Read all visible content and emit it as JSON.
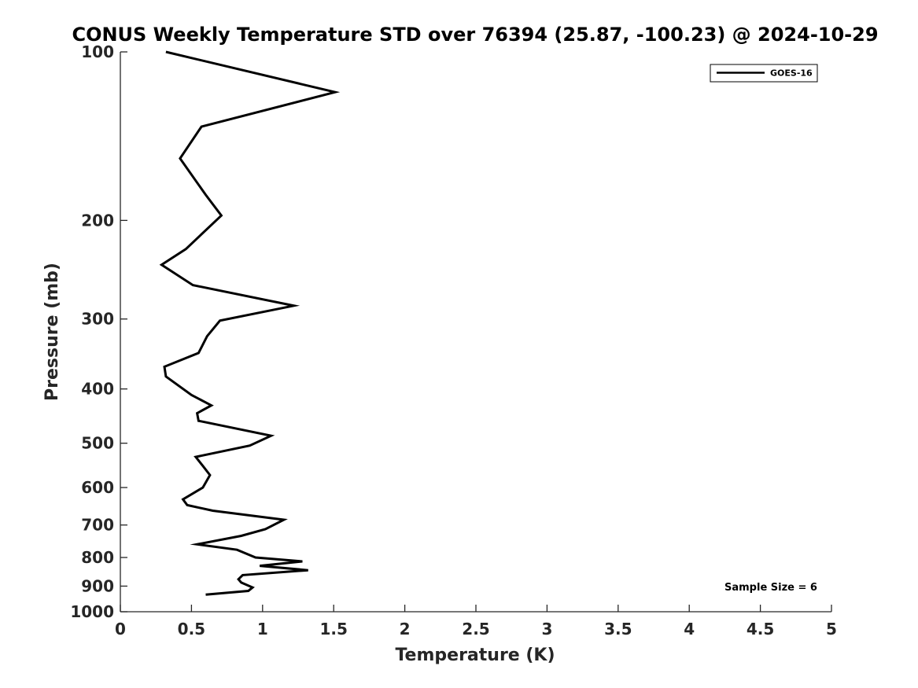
{
  "chart_data": {
    "type": "line",
    "title": "CONUS Weekly Temperature STD over 76394 (25.87, -100.23) @ 2024-10-29",
    "xlabel": "Temperature (K)",
    "ylabel": "Pressure (mb)",
    "xlim": [
      0,
      5
    ],
    "ylim": [
      100,
      1000
    ],
    "y_scale": "log",
    "y_reversed": true,
    "grid": false,
    "legend_position": "top-right",
    "x_ticks": [
      "0",
      "0.5",
      "1",
      "1.5",
      "2",
      "2.5",
      "3",
      "3.5",
      "4",
      "4.5",
      "5"
    ],
    "y_ticks": [
      "100",
      "200",
      "300",
      "400",
      "500",
      "600",
      "700",
      "800",
      "900",
      "1000"
    ],
    "series": [
      {
        "name": "GOES-16",
        "color": "#000000",
        "x": [
          0.32,
          1.51,
          0.57,
          0.42,
          0.6,
          0.71,
          0.46,
          0.29,
          0.51,
          1.22,
          0.7,
          0.61,
          0.55,
          0.31,
          0.32,
          0.5,
          0.64,
          0.54,
          0.55,
          1.06,
          0.91,
          0.53,
          0.58,
          0.63,
          0.58,
          0.44,
          0.47,
          0.65,
          1.15,
          1.02,
          0.85,
          0.54,
          0.82,
          0.95,
          1.28,
          0.98,
          1.32,
          0.86,
          0.83,
          0.85,
          0.93,
          0.9,
          0.6
        ],
        "y": [
          100,
          118,
          136,
          155,
          180,
          196,
          225,
          240,
          261,
          284,
          302,
          322,
          345,
          365,
          380,
          410,
          428,
          442,
          456,
          485,
          505,
          529,
          549,
          570,
          600,
          630,
          645,
          660,
          685,
          712,
          732,
          758,
          775,
          800,
          813,
          828,
          843,
          860,
          875,
          887,
          905,
          918,
          932
        ]
      }
    ],
    "annotation": "Sample Size = 6"
  }
}
